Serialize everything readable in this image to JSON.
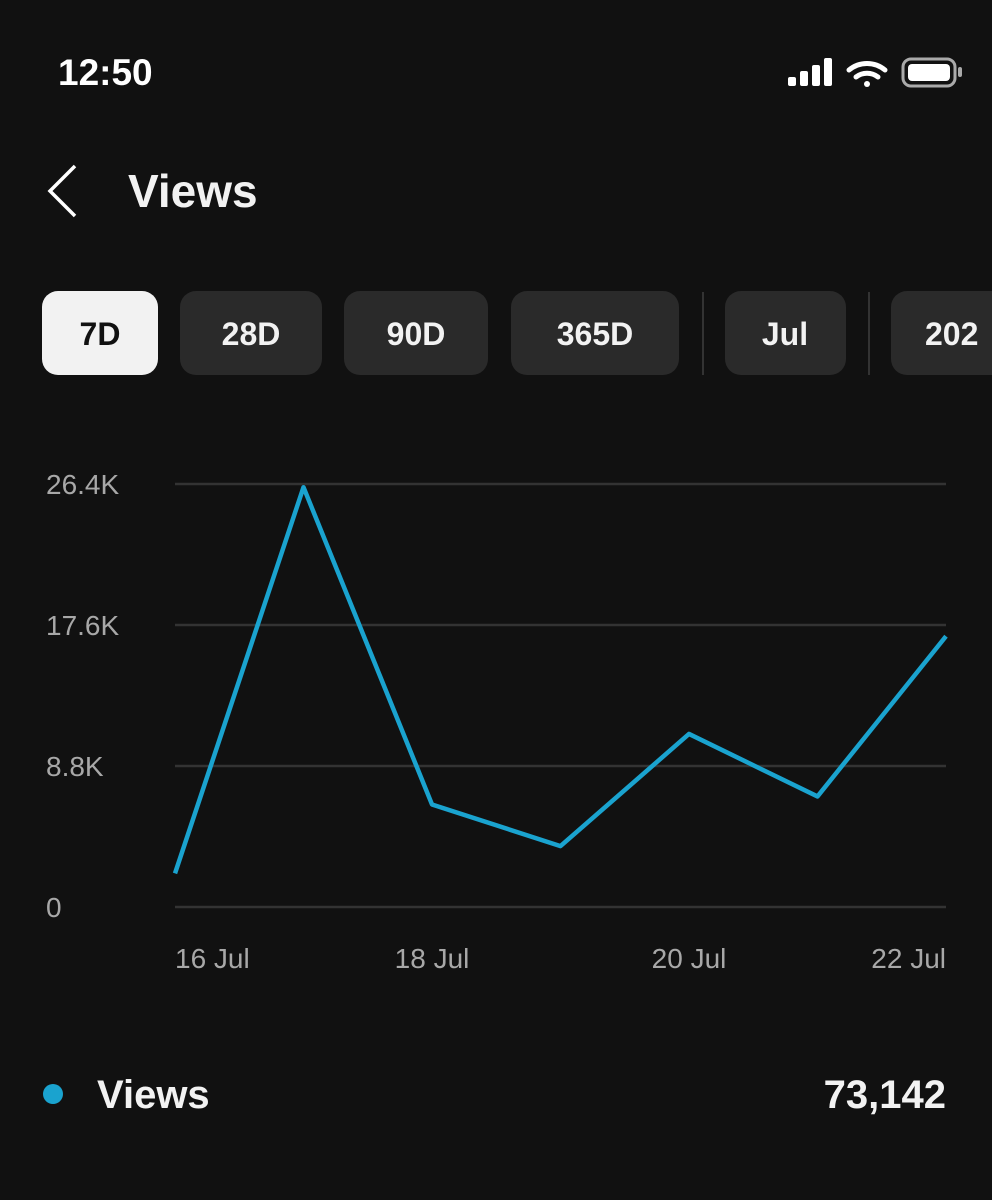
{
  "status_bar": {
    "time": "12:50"
  },
  "header": {
    "title": "Views"
  },
  "tabs": [
    "7D",
    "28D",
    "90D",
    "365D",
    "Jul",
    "202"
  ],
  "chart_data": {
    "type": "line",
    "categories": [
      "16 Jul",
      null,
      "18 Jul",
      null,
      "20 Jul",
      null,
      "22 Jul"
    ],
    "series": [
      {
        "name": "Views",
        "color": "#1aa3cf",
        "values": [
          2100,
          26200,
          6400,
          3800,
          10800,
          6900,
          16900
        ]
      }
    ],
    "ylim": [
      0,
      26400
    ],
    "yticks": [
      0,
      {
        "value": 8800,
        "label": "8.8K"
      },
      {
        "value": 17600,
        "label": "17.6K"
      },
      {
        "value": 26400,
        "label": "26.4K"
      }
    ],
    "grid": true
  },
  "summary": {
    "total": "73,142"
  }
}
